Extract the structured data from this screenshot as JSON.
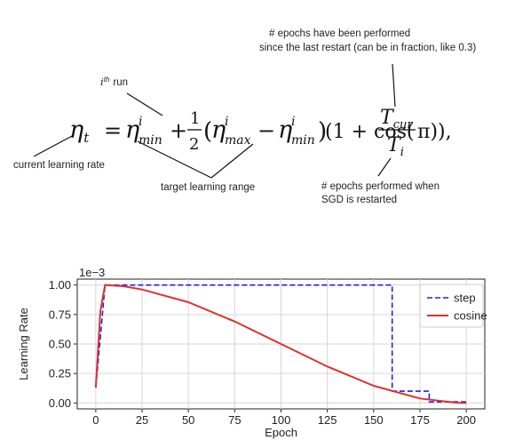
{
  "formula": {
    "annotations": {
      "epochs_since_restart_line1": "# epochs have been performed",
      "epochs_since_restart_line2": "since the last restart (can be in fraction, like 0.3)",
      "ith_run_sup": "th",
      "ith_run_i": "i",
      "ith_run_word": "run",
      "current_lr": "current learning rate",
      "target_range": "target learning range",
      "epochs_restart_line1": "# epochs performed when",
      "epochs_restart_line2": "SGD is restarted"
    },
    "parts": {
      "eta": "η",
      "t": "t",
      "equals": "=",
      "i": "i",
      "min": "min",
      "max": "max",
      "plus": "+",
      "minus": "−",
      "one": "1",
      "two": "2",
      "lparen": "(",
      "rparen": ")",
      "one_plus_cos": "(1 + cos(",
      "T": "T",
      "cur": "cur",
      "pi_close": "π)),"
    }
  },
  "chart_data": {
    "type": "line",
    "xlabel": "Epoch",
    "ylabel": "Learning Rate",
    "scale_label": "1e−3",
    "xlim": [
      -10,
      210
    ],
    "ylim": [
      -0.05,
      1.05
    ],
    "x_ticks": [
      0,
      25,
      50,
      75,
      100,
      125,
      150,
      175,
      200
    ],
    "y_ticks": [
      0.0,
      0.25,
      0.5,
      0.75,
      1.0
    ],
    "x_tick_labels": [
      "0",
      "25",
      "50",
      "75",
      "100",
      "125",
      "150",
      "175",
      "200"
    ],
    "y_tick_labels": [
      "0.00",
      "0.25",
      "0.50",
      "0.75",
      "1.00"
    ],
    "grid": true,
    "legend_position": "top-right",
    "series": [
      {
        "name": "step",
        "color": "#2222dd",
        "style": "dashed",
        "points": [
          [
            0,
            0.13
          ],
          [
            5,
            1.0
          ],
          [
            160,
            1.0
          ],
          [
            160,
            0.1
          ],
          [
            180,
            0.1
          ],
          [
            180,
            0.01
          ],
          [
            200,
            0.01
          ]
        ]
      },
      {
        "name": "cosine",
        "color": "#e03030",
        "style": "solid",
        "points": [
          [
            0,
            0.13
          ],
          [
            2.5,
            0.78
          ],
          [
            5,
            1.0
          ],
          [
            15,
            0.99
          ],
          [
            25,
            0.962
          ],
          [
            50,
            0.854
          ],
          [
            75,
            0.691
          ],
          [
            100,
            0.5
          ],
          [
            125,
            0.309
          ],
          [
            150,
            0.146
          ],
          [
            175,
            0.038
          ],
          [
            195,
            0.0016
          ],
          [
            200,
            0.0
          ]
        ]
      }
    ]
  }
}
